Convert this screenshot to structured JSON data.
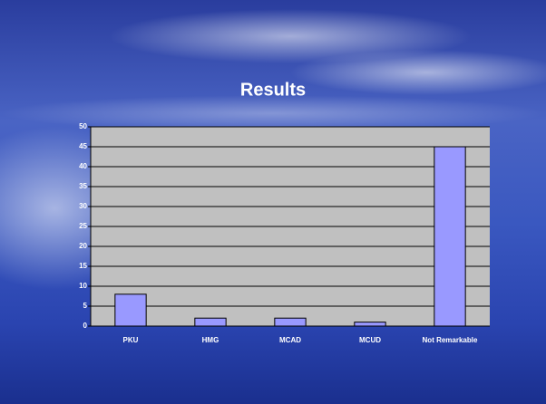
{
  "chart_data": {
    "type": "bar",
    "title": "Results",
    "categories": [
      "PKU",
      "HMG",
      "MCAD",
      "MCUD",
      "Not Remarkable"
    ],
    "values": [
      8,
      2,
      2,
      1,
      45
    ],
    "color": "#9999ff",
    "ylim": [
      0,
      50
    ],
    "yticks": [
      0,
      5,
      10,
      15,
      20,
      25,
      30,
      35,
      40,
      45,
      50
    ],
    "grid": true
  }
}
